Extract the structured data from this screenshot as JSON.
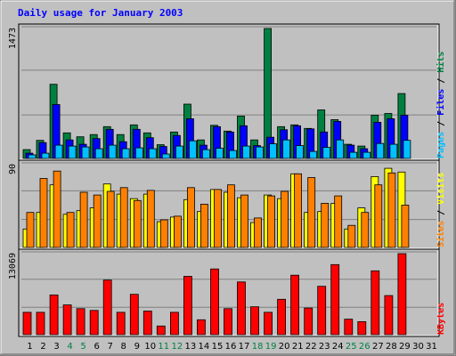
{
  "title": "Daily usage for January 2003",
  "colors": {
    "background": "#c0c0c0",
    "hits": "#008040",
    "files": "#0000ff",
    "pages": "#00c0ff",
    "visits": "#ffff00",
    "sites": "#ff8000",
    "kbytes": "#ff0000",
    "weekend_day_label": "#008040",
    "weekday_label": "#000000"
  },
  "chart_data": [
    {
      "type": "bar",
      "panel": "hits-files-pages",
      "ymax_label": "1473",
      "ylim": [
        0,
        1473
      ],
      "grid": true,
      "legend": {
        "placement": "right",
        "items": [
          {
            "text": "Pages",
            "color": "#00c0ff"
          },
          {
            "text": "Files",
            "color": "#0000ff"
          },
          {
            "text": "Hits",
            "color": "#008040"
          }
        ],
        "separator": " / "
      },
      "categories": [
        "1",
        "2",
        "3",
        "4",
        "5",
        "6",
        "7",
        "8",
        "9",
        "10",
        "11",
        "12",
        "13",
        "14",
        "15",
        "16",
        "17",
        "18",
        "19",
        "20",
        "21",
        "22",
        "23",
        "24",
        "25",
        "26",
        "27",
        "28",
        "29",
        "30",
        "31"
      ],
      "series": [
        {
          "name": "Hits",
          "color": "#008040",
          "values": [
            100,
            205,
            840,
            290,
            245,
            270,
            360,
            270,
            380,
            290,
            155,
            300,
            615,
            210,
            375,
            310,
            480,
            210,
            1473,
            360,
            380,
            340,
            550,
            440,
            160,
            140,
            490,
            510,
            735,
            0,
            0
          ]
        },
        {
          "name": "Files",
          "color": "#0000ff",
          "values": [
            60,
            180,
            610,
            210,
            160,
            225,
            330,
            190,
            330,
            235,
            135,
            260,
            450,
            150,
            360,
            300,
            370,
            145,
            240,
            325,
            370,
            335,
            300,
            420,
            150,
            110,
            410,
            450,
            490,
            0,
            0
          ]
        },
        {
          "name": "Pages",
          "color": "#00c0ff",
          "values": [
            40,
            60,
            150,
            140,
            130,
            110,
            150,
            110,
            120,
            110,
            50,
            140,
            200,
            100,
            115,
            90,
            140,
            130,
            165,
            210,
            145,
            80,
            125,
            210,
            70,
            70,
            170,
            160,
            205,
            0,
            0
          ]
        }
      ]
    },
    {
      "type": "bar",
      "panel": "visits-sites",
      "ymax_label": "90",
      "ylim": [
        0,
        90
      ],
      "grid": true,
      "legend": {
        "placement": "right",
        "items": [
          {
            "text": "Sites",
            "color": "#ff8000"
          },
          {
            "text": "Visits",
            "color": "#ffff00"
          }
        ],
        "separator": " / "
      },
      "categories": [
        "1",
        "2",
        "3",
        "4",
        "5",
        "6",
        "7",
        "8",
        "9",
        "10",
        "11",
        "12",
        "13",
        "14",
        "15",
        "16",
        "17",
        "18",
        "19",
        "20",
        "21",
        "22",
        "23",
        "24",
        "25",
        "26",
        "27",
        "28",
        "29",
        "30",
        "31"
      ],
      "series": [
        {
          "name": "Visits",
          "color": "#ffff00",
          "values": [
            20,
            38,
            68,
            36,
            40,
            43,
            69,
            58,
            53,
            58,
            28,
            33,
            52,
            39,
            63,
            60,
            54,
            27,
            57,
            53,
            80,
            38,
            39,
            48,
            20,
            43,
            77,
            86,
            82,
            0,
            0
          ]
        },
        {
          "name": "Sites",
          "color": "#ff8000",
          "values": [
            38,
            75,
            83,
            38,
            60,
            57,
            61,
            65,
            51,
            62,
            30,
            34,
            65,
            47,
            63,
            68,
            57,
            32,
            56,
            61,
            80,
            76,
            48,
            56,
            24,
            38,
            68,
            81,
            46,
            0,
            0
          ]
        }
      ]
    },
    {
      "type": "bar",
      "panel": "kbytes",
      "ymax_label": "13069",
      "ylim": [
        0,
        13069
      ],
      "grid": true,
      "legend": {
        "placement": "right",
        "items": [
          {
            "text": "KBytes",
            "color": "#ff0000"
          }
        ],
        "separator": ""
      },
      "categories": [
        "1",
        "2",
        "3",
        "4",
        "5",
        "6",
        "7",
        "8",
        "9",
        "10",
        "11",
        "12",
        "13",
        "14",
        "15",
        "16",
        "17",
        "18",
        "19",
        "20",
        "21",
        "22",
        "23",
        "24",
        "25",
        "26",
        "27",
        "28",
        "29",
        "30",
        "31"
      ],
      "series": [
        {
          "name": "KBytes",
          "color": "#ff0000",
          "values": [
            3600,
            3600,
            6400,
            4800,
            4200,
            3900,
            8800,
            3600,
            6500,
            3800,
            1400,
            3600,
            9400,
            2400,
            10600,
            4200,
            8500,
            4500,
            3600,
            5700,
            9600,
            4300,
            7800,
            11300,
            2500,
            2100,
            10300,
            6300,
            13069,
            0,
            0
          ]
        }
      ]
    }
  ],
  "day_labels": [
    {
      "text": "1",
      "weekend": false
    },
    {
      "text": "2",
      "weekend": false
    },
    {
      "text": "3",
      "weekend": false
    },
    {
      "text": "4",
      "weekend": true
    },
    {
      "text": "5",
      "weekend": true
    },
    {
      "text": "6",
      "weekend": false
    },
    {
      "text": "7",
      "weekend": false
    },
    {
      "text": "8",
      "weekend": false
    },
    {
      "text": "9",
      "weekend": false
    },
    {
      "text": "10",
      "weekend": false
    },
    {
      "text": "11",
      "weekend": true
    },
    {
      "text": "12",
      "weekend": true
    },
    {
      "text": "13",
      "weekend": false
    },
    {
      "text": "14",
      "weekend": false
    },
    {
      "text": "15",
      "weekend": false
    },
    {
      "text": "16",
      "weekend": false
    },
    {
      "text": "17",
      "weekend": false
    },
    {
      "text": "18",
      "weekend": true
    },
    {
      "text": "19",
      "weekend": true
    },
    {
      "text": "20",
      "weekend": false
    },
    {
      "text": "21",
      "weekend": false
    },
    {
      "text": "22",
      "weekend": false
    },
    {
      "text": "23",
      "weekend": false
    },
    {
      "text": "24",
      "weekend": false
    },
    {
      "text": "25",
      "weekend": true
    },
    {
      "text": "26",
      "weekend": true
    },
    {
      "text": "27",
      "weekend": false
    },
    {
      "text": "28",
      "weekend": false
    },
    {
      "text": "29",
      "weekend": false
    },
    {
      "text": "30",
      "weekend": false
    },
    {
      "text": "31",
      "weekend": false
    }
  ]
}
